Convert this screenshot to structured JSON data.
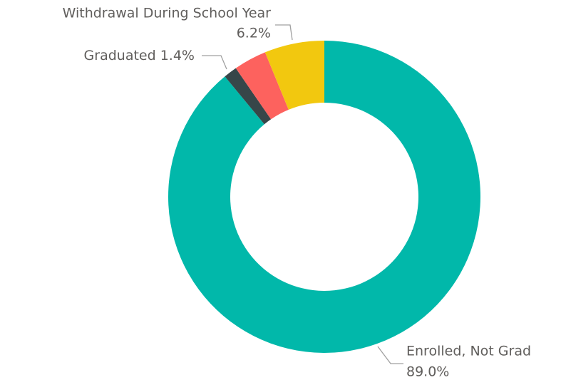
{
  "chart_data": {
    "type": "donut",
    "categories": [
      "Enrolled, Not Grad",
      "Graduated",
      null,
      "Withdrawal During School Year"
    ],
    "values": [
      89.0,
      1.4,
      3.4,
      6.2
    ],
    "value_labels": [
      "89.0%",
      "1.4%",
      null,
      "6.2%"
    ],
    "colors": [
      "#01b8aa",
      "#374649",
      "#fd625e",
      "#f2c80f"
    ]
  }
}
